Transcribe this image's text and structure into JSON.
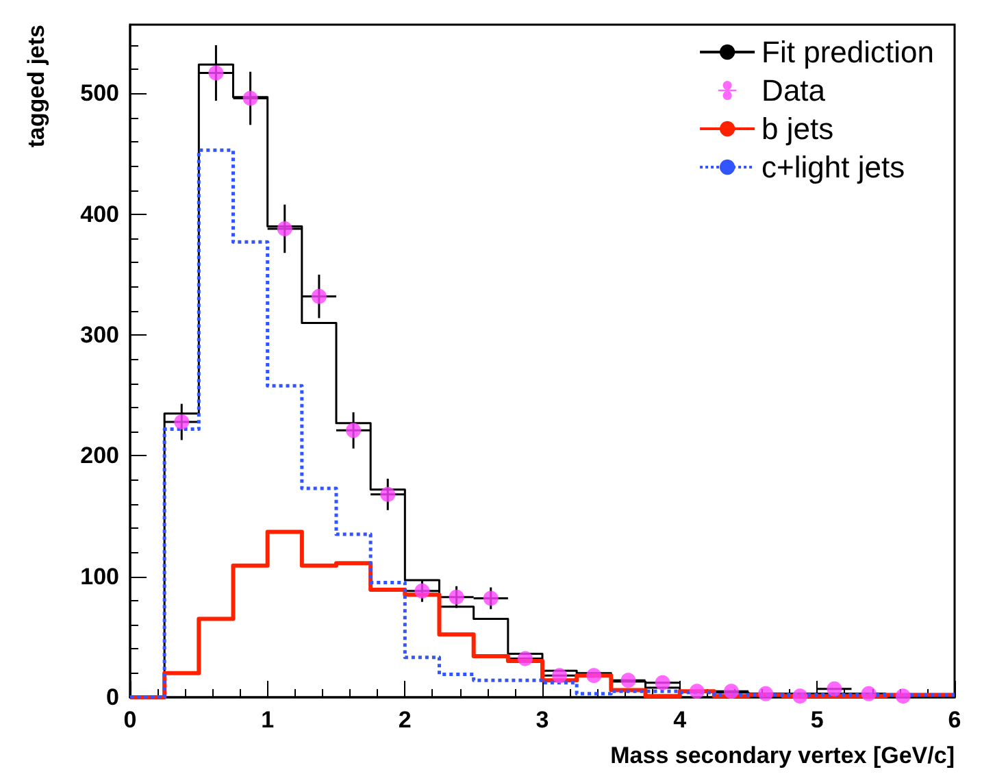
{
  "chart_data": {
    "type": "histogram",
    "xlabel": "Mass secondary vertex [GeV/c]",
    "ylabel": "tagged jets",
    "bins": [
      0,
      0.25,
      0.5,
      0.75,
      1,
      1.25,
      1.5,
      1.75,
      2,
      2.25,
      2.5,
      2.75,
      3,
      3.25,
      3.5,
      3.75,
      4,
      4.25,
      4.5,
      4.75,
      5,
      5.25,
      5.5,
      5.75,
      6
    ],
    "series": [
      {
        "name": "Fit prediction",
        "color": "#000000",
        "line_style": "solid",
        "values": [
          0,
          235,
          524,
          497,
          390,
          310,
          227,
          172,
          97,
          75,
          65,
          36,
          22,
          20,
          13,
          8,
          5,
          4,
          3,
          3,
          3,
          2,
          2,
          2
        ]
      },
      {
        "name": "Data",
        "type": "scatter",
        "color": "#ff44ff",
        "marker": "circle",
        "x": [
          0.375,
          0.625,
          0.875,
          1.125,
          1.375,
          1.625,
          1.875,
          2.125,
          2.375,
          2.625,
          2.875,
          3.125,
          3.375,
          3.625,
          3.875,
          4.125,
          4.375,
          4.625,
          4.875,
          5.125,
          5.375,
          5.625
        ],
        "values": [
          228,
          517,
          496,
          388,
          332,
          221,
          168,
          88,
          83,
          82,
          32,
          18,
          18,
          14,
          12,
          5,
          5,
          3,
          1,
          7,
          3,
          1
        ],
        "errors": [
          15,
          23,
          22,
          20,
          18,
          15,
          13,
          9,
          9,
          9,
          null,
          null,
          null,
          null,
          null,
          null,
          null,
          null,
          null,
          null,
          null,
          null
        ],
        "xerrors": [
          0.125,
          0.125,
          0.125,
          0.125,
          0.125,
          0.125,
          0.125,
          0.125,
          0.125,
          0.125,
          0.125,
          0.125,
          0.125,
          0.125,
          0.125,
          0.125,
          0.125,
          0.125,
          0.125,
          0.125,
          0.125,
          0.125
        ]
      },
      {
        "name": "b jets",
        "color": "#ff2200",
        "line_style": "solid",
        "values": [
          0,
          20,
          65,
          109,
          137,
          109,
          111,
          89,
          85,
          52,
          34,
          30,
          14,
          18,
          6,
          1,
          5,
          1,
          2,
          1,
          1,
          1,
          2,
          2
        ]
      },
      {
        "name": "c+light jets",
        "color": "#3355ff",
        "line_style": "dotted",
        "values": [
          0,
          222,
          453,
          377,
          258,
          173,
          135,
          95,
          33,
          19,
          14,
          14,
          12,
          3,
          5,
          5,
          4,
          2,
          2,
          2,
          2,
          2,
          2,
          2
        ]
      }
    ],
    "xlim": [
      0,
      6
    ],
    "xticks": [
      0,
      1,
      2,
      3,
      4,
      5,
      6
    ],
    "ylim": [
      0,
      557
    ],
    "yticks": [
      0,
      100,
      200,
      300,
      400,
      500
    ],
    "grid": false,
    "legend": "top right"
  }
}
